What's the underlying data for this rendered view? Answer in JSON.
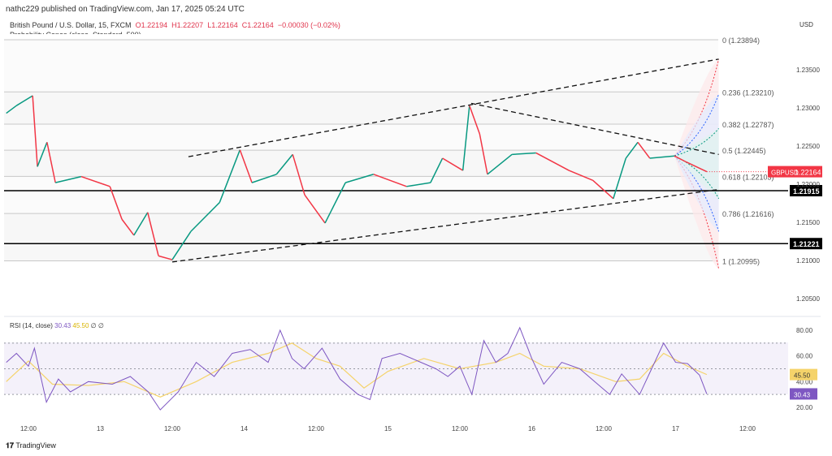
{
  "header": {
    "published": "nathc229 published on TradingView.com, Jan 17, 2025 05:24 UTC",
    "symbol": "British Pound / U.S. Dollar, 15, FXCM",
    "o": "O1.22194",
    "h": "H1.22207",
    "l": "L1.22164",
    "c": "C1.22164",
    "chg": "−0.00030 (−0.02%)",
    "indicator": "Probability Cones (close, Standard, 500)"
  },
  "currency": "USD",
  "ticker": "GBPUSD",
  "last_price": "1.22164",
  "hlines": [
    {
      "label": "1.21915",
      "price": 1.21915
    },
    {
      "label": "1.21221",
      "price": 1.21221
    }
  ],
  "footer": {
    "brand": "TradingView"
  },
  "rsi_legend": {
    "name": "RSI (14, close)",
    "rsi": "30.43",
    "ma": "45.50",
    "extra": "∅ ∅"
  },
  "colors": {
    "up": "#089981",
    "down": "#f23645",
    "rsi": "#7e57c2",
    "ma": "#f5d36a",
    "accent": "#f23645"
  },
  "chart_data": [
    {
      "type": "line",
      "title": "GBPUSD 15m",
      "ylim": [
        1.2025,
        1.2425
      ],
      "price_ticks": [
        "1.23500",
        "1.23000",
        "1.22500",
        "1.22000",
        "1.21500",
        "1.21000",
        "1.20500"
      ],
      "x_ticks": [
        {
          "label": "12:00",
          "h": 0
        },
        {
          "label": "13",
          "h": 12
        },
        {
          "label": "12:00",
          "h": 24
        },
        {
          "label": "14",
          "h": 36
        },
        {
          "label": "12:00",
          "h": 48
        },
        {
          "label": "15",
          "h": 60
        },
        {
          "label": "12:00",
          "h": 72
        },
        {
          "label": "16",
          "h": 84
        },
        {
          "label": "12:00",
          "h": 96
        },
        {
          "label": "17",
          "h": 108
        },
        {
          "label": "12:00",
          "h": 120
        }
      ],
      "price": [
        [
          -3.7,
          1.2293
        ],
        [
          -2,
          1.2303
        ],
        [
          0.7,
          1.2316
        ],
        [
          1.5,
          1.2223
        ],
        [
          3.1,
          1.2255
        ],
        [
          4.5,
          1.2202
        ],
        [
          8.8,
          1.221
        ],
        [
          13.6,
          1.2197
        ],
        [
          15.6,
          1.2154
        ],
        [
          17.6,
          1.2133
        ],
        [
          19.9,
          1.2163
        ],
        [
          21.7,
          1.2106
        ],
        [
          24,
          1.2101
        ],
        [
          27.1,
          1.2138
        ],
        [
          31.9,
          1.2176
        ],
        [
          35.3,
          1.2245
        ],
        [
          37.3,
          1.2202
        ],
        [
          41.4,
          1.2213
        ],
        [
          44.1,
          1.2239
        ],
        [
          46.1,
          1.2186
        ],
        [
          49.5,
          1.2149
        ],
        [
          52.9,
          1.2202
        ],
        [
          57.6,
          1.2213
        ],
        [
          63.1,
          1.2197
        ],
        [
          67.1,
          1.2202
        ],
        [
          69.1,
          1.2234
        ],
        [
          72.5,
          1.2218
        ],
        [
          73.6,
          1.2303
        ],
        [
          75.3,
          1.2266
        ],
        [
          76.6,
          1.2213
        ],
        [
          80.7,
          1.2239
        ],
        [
          84.7,
          1.2241
        ],
        [
          90.2,
          1.2218
        ],
        [
          94.2,
          1.2205
        ],
        [
          97.6,
          1.2181
        ],
        [
          99.7,
          1.2234
        ],
        [
          101.7,
          1.2255
        ],
        [
          103.7,
          1.2234
        ],
        [
          107.8,
          1.2237
        ],
        [
          109.8,
          1.2229
        ],
        [
          113.2,
          1.22164
        ]
      ],
      "fib": [
        {
          "label": "0 (1.23894)",
          "price": 1.23894
        },
        {
          "label": "0.236 (1.23210)",
          "price": 1.2321
        },
        {
          "label": "0.382 (1.22787)",
          "price": 1.22787
        },
        {
          "label": "0.5 (1.22445)",
          "price": 1.22445
        },
        {
          "label": "0.618 (1.22103)",
          "price": 1.22103
        },
        {
          "label": "0.786 (1.21616)",
          "price": 1.21616
        },
        {
          "label": "1 (1.20995)",
          "price": 1.20995
        }
      ],
      "trendlines": [
        [
          [
            26.7,
            1.2236
          ],
          [
            115.2,
            1.2364
          ]
        ],
        [
          [
            73.9,
            1.2306
          ],
          [
            115.2,
            1.2239
          ]
        ],
        [
          [
            24,
            1.2098
          ],
          [
            115.2,
            1.2193
          ]
        ]
      ],
      "cones": {
        "start": [
          107.8,
          1.2237
        ],
        "end_h": 115.2,
        "red": [
          1.2364,
          1.2089
        ],
        "blue": [
          1.2318,
          1.2138
        ],
        "green": [
          1.2273,
          1.2181
        ]
      }
    },
    {
      "type": "line",
      "title": "RSI (14, close)",
      "ylim": [
        10,
        90
      ],
      "bands": [
        30,
        50,
        70
      ],
      "ticks": [
        "80.00",
        "60.00",
        "40.00",
        "20.00"
      ],
      "rsi": [
        [
          -3.7,
          55
        ],
        [
          -2,
          62
        ],
        [
          0,
          52
        ],
        [
          1,
          66
        ],
        [
          3,
          24
        ],
        [
          5,
          42
        ],
        [
          7,
          32
        ],
        [
          10,
          40
        ],
        [
          14,
          38
        ],
        [
          17,
          44
        ],
        [
          20,
          32
        ],
        [
          22,
          18
        ],
        [
          25,
          32
        ],
        [
          28,
          55
        ],
        [
          31,
          44
        ],
        [
          34,
          62
        ],
        [
          37,
          65
        ],
        [
          40,
          55
        ],
        [
          42,
          80
        ],
        [
          44,
          58
        ],
        [
          46,
          50
        ],
        [
          49,
          66
        ],
        [
          52,
          42
        ],
        [
          55,
          30
        ],
        [
          57,
          26
        ],
        [
          59,
          58
        ],
        [
          62,
          62
        ],
        [
          65,
          56
        ],
        [
          68,
          50
        ],
        [
          70,
          44
        ],
        [
          72,
          52
        ],
        [
          74,
          30
        ],
        [
          76,
          72
        ],
        [
          78,
          55
        ],
        [
          80,
          62
        ],
        [
          82,
          82
        ],
        [
          84,
          58
        ],
        [
          86,
          38
        ],
        [
          89,
          55
        ],
        [
          92,
          50
        ],
        [
          95,
          38
        ],
        [
          97,
          30
        ],
        [
          99,
          46
        ],
        [
          102,
          30
        ],
        [
          104,
          50
        ],
        [
          106,
          70
        ],
        [
          108,
          55
        ],
        [
          110,
          54
        ],
        [
          112,
          45
        ],
        [
          113.2,
          30.43
        ]
      ],
      "ma": [
        [
          -3.7,
          40
        ],
        [
          0,
          56
        ],
        [
          4,
          38
        ],
        [
          10,
          37
        ],
        [
          16,
          40
        ],
        [
          22,
          28
        ],
        [
          28,
          40
        ],
        [
          34,
          55
        ],
        [
          40,
          62
        ],
        [
          44,
          70
        ],
        [
          48,
          58
        ],
        [
          52,
          52
        ],
        [
          56,
          35
        ],
        [
          60,
          48
        ],
        [
          66,
          58
        ],
        [
          72,
          50
        ],
        [
          78,
          55
        ],
        [
          82,
          62
        ],
        [
          86,
          52
        ],
        [
          92,
          50
        ],
        [
          98,
          40
        ],
        [
          102,
          42
        ],
        [
          106,
          62
        ],
        [
          110,
          52
        ],
        [
          113.2,
          45.5
        ]
      ]
    }
  ]
}
